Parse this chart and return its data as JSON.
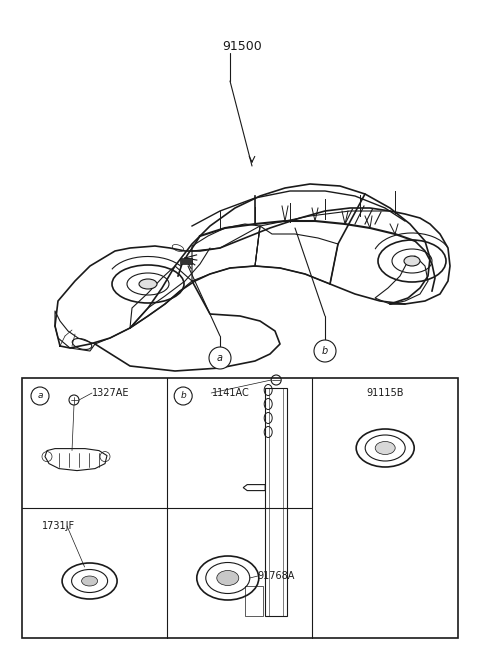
{
  "bg_color": "#ffffff",
  "line_color": "#1a1a1a",
  "part_label_main": "91500",
  "callout_a": "a",
  "callout_b": "b",
  "label_1327AE": "1327AE",
  "label_1141AC": "1141AC",
  "label_91115B": "91115B",
  "label_1731JF": "1731JF",
  "label_91768A": "91768A"
}
